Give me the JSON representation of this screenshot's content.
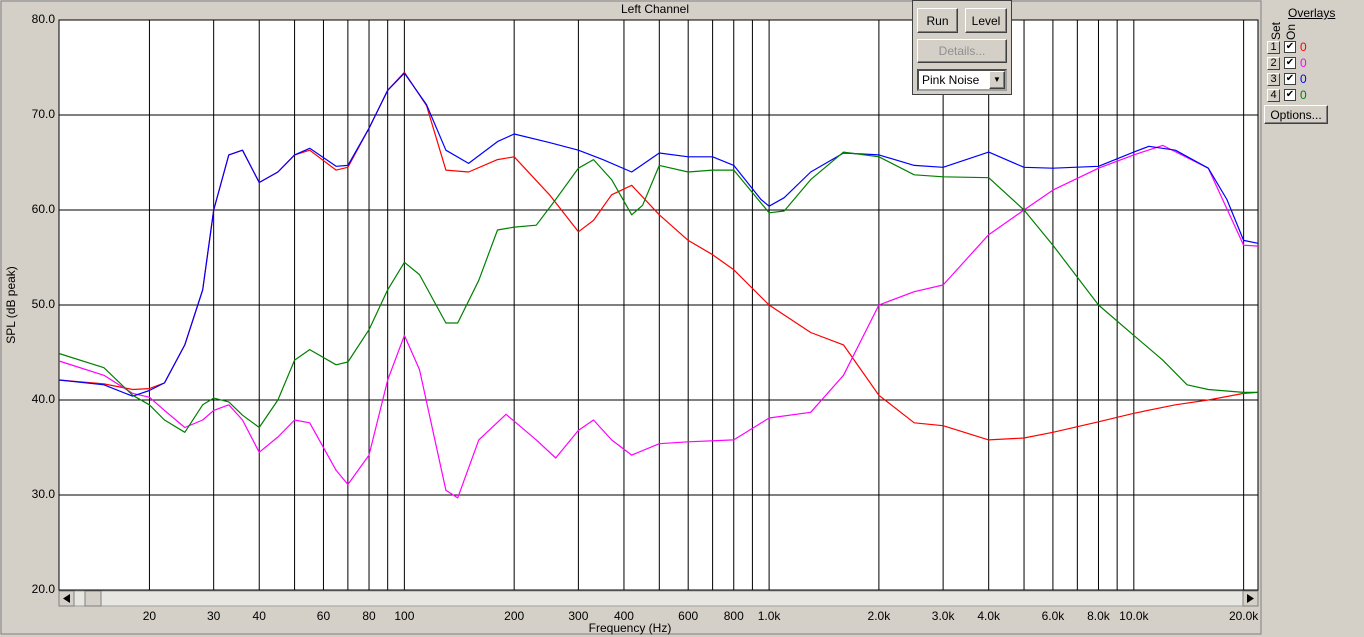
{
  "chart_data": {
    "type": "line",
    "title": "Left Channel",
    "x_label": "Frequency (Hz)",
    "y_label": "SPL (dB peak)",
    "x_scale": "log",
    "grid": true,
    "xlim": [
      11.3,
      21900
    ],
    "ylim": [
      20,
      80
    ],
    "xticks": [
      20,
      30,
      40,
      60,
      80,
      100,
      200,
      300,
      400,
      600,
      800,
      {
        "value": 1000,
        "label": "1.0k"
      },
      {
        "value": 2000,
        "label": "2.0k"
      },
      {
        "value": 3000,
        "label": "3.0k"
      },
      {
        "value": 4000,
        "label": "4.0k"
      },
      {
        "value": 6000,
        "label": "6.0k"
      },
      {
        "value": 8000,
        "label": "8.0k"
      },
      {
        "value": 10000,
        "label": "10.0k"
      },
      {
        "value": 20000,
        "label": "20.0k"
      }
    ],
    "xgrid": [
      50,
      70,
      90,
      500,
      700,
      900,
      5000,
      7000,
      9000
    ],
    "yticks": [
      {
        "value": 20,
        "label": "20.0"
      },
      {
        "value": 30,
        "label": "30.0"
      },
      {
        "value": 40,
        "label": "40.0"
      },
      {
        "value": 50,
        "label": "50.0"
      },
      {
        "value": 60,
        "label": "60.0"
      },
      {
        "value": 70,
        "label": "70.0"
      },
      {
        "value": 80,
        "label": "80.0"
      }
    ],
    "series": [
      {
        "color": "#ff0000",
        "x": [
          11.3,
          15,
          18,
          20,
          22,
          25,
          28,
          30,
          33,
          36,
          40,
          45,
          50,
          55,
          65,
          70,
          80,
          90,
          100,
          115,
          130,
          150,
          180,
          200,
          250,
          300,
          330,
          370,
          420,
          500,
          600,
          700,
          800,
          1000,
          1300,
          1600,
          2000,
          2500,
          3000,
          4000,
          5000,
          6000,
          8000,
          10000,
          13000,
          16000,
          20000,
          21900
        ],
        "values": [
          42.1,
          41.7,
          41.1,
          41.2,
          41.8,
          45.8,
          51.6,
          60.0,
          65.8,
          66.3,
          62.9,
          64.0,
          65.8,
          66.3,
          64.2,
          64.5,
          68.6,
          72.6,
          74.5,
          71.0,
          64.2,
          64.0,
          65.3,
          65.6,
          61.6,
          57.7,
          58.9,
          61.6,
          62.6,
          59.5,
          56.8,
          55.3,
          53.7,
          50.0,
          47.1,
          45.8,
          40.5,
          37.6,
          37.3,
          35.8,
          36.0,
          36.6,
          37.7,
          38.6,
          39.5,
          40.0,
          40.7,
          40.8
        ]
      },
      {
        "color": "#ff00ff",
        "x": [
          11.3,
          15,
          18,
          20,
          22,
          25,
          28,
          30,
          33,
          36,
          40,
          45,
          50,
          55,
          65,
          70,
          80,
          90,
          100,
          110,
          130,
          140,
          160,
          190,
          230,
          260,
          300,
          330,
          370,
          420,
          500,
          600,
          800,
          1000,
          1300,
          1600,
          2000,
          2500,
          3000,
          4000,
          5000,
          6000,
          8000,
          10000,
          12000,
          16000,
          20000,
          21900
        ],
        "values": [
          44.1,
          42.6,
          40.7,
          40.3,
          38.9,
          37.1,
          37.9,
          38.9,
          39.5,
          37.9,
          34.5,
          36.1,
          37.9,
          37.6,
          32.6,
          31.1,
          34.2,
          42.1,
          46.8,
          43.2,
          30.5,
          29.7,
          35.8,
          38.5,
          35.8,
          33.9,
          36.8,
          37.9,
          35.8,
          34.2,
          35.4,
          35.6,
          35.8,
          38.1,
          38.7,
          42.6,
          50.0,
          51.4,
          52.1,
          57.4,
          60.0,
          62.1,
          64.4,
          65.8,
          66.8,
          64.4,
          56.3,
          56.2
        ]
      },
      {
        "color": "#0000ff",
        "x": [
          11.3,
          15,
          18,
          20,
          22,
          25,
          28,
          30,
          33,
          36,
          40,
          45,
          50,
          55,
          65,
          70,
          80,
          90,
          100,
          115,
          130,
          150,
          180,
          200,
          250,
          300,
          350,
          420,
          500,
          600,
          700,
          800,
          950,
          1000,
          1100,
          1300,
          1600,
          2000,
          2500,
          3000,
          4000,
          5000,
          6000,
          8000,
          10000,
          11000,
          13000,
          16000,
          18000,
          20000,
          21900
        ],
        "values": [
          42.1,
          41.6,
          40.4,
          41.0,
          41.8,
          45.8,
          51.6,
          60.0,
          65.8,
          66.3,
          62.9,
          64.0,
          65.8,
          66.5,
          64.6,
          64.7,
          68.6,
          72.6,
          74.4,
          71.1,
          66.3,
          64.9,
          67.2,
          68.0,
          67.1,
          66.3,
          65.3,
          64.0,
          66.0,
          65.6,
          65.6,
          64.7,
          61.1,
          60.4,
          61.3,
          64.0,
          66.0,
          65.8,
          64.7,
          64.5,
          66.1,
          64.5,
          64.4,
          64.6,
          66.1,
          66.7,
          66.3,
          64.4,
          61.1,
          56.8,
          56.5
        ]
      },
      {
        "color": "#008000",
        "x": [
          11.3,
          15,
          18,
          20,
          22,
          25,
          28,
          30,
          33,
          36,
          40,
          45,
          50,
          55,
          65,
          70,
          80,
          90,
          100,
          110,
          130,
          140,
          160,
          180,
          200,
          230,
          260,
          300,
          330,
          370,
          420,
          450,
          500,
          600,
          700,
          800,
          1000,
          1100,
          1300,
          1600,
          2000,
          2500,
          3000,
          4000,
          5000,
          6000,
          8000,
          10000,
          12000,
          14000,
          16000,
          20000,
          21900
        ],
        "values": [
          44.9,
          43.4,
          40.5,
          39.5,
          37.9,
          36.6,
          39.5,
          40.2,
          39.8,
          38.4,
          37.1,
          40.0,
          44.2,
          45.3,
          43.7,
          44.0,
          47.4,
          51.6,
          54.5,
          53.2,
          48.1,
          48.1,
          52.6,
          57.9,
          58.2,
          58.4,
          61.1,
          64.4,
          65.3,
          63.2,
          59.5,
          60.5,
          64.7,
          64.0,
          64.2,
          64.2,
          59.7,
          59.9,
          63.2,
          66.1,
          65.6,
          63.7,
          63.5,
          63.4,
          60.0,
          56.3,
          50.0,
          46.8,
          44.2,
          41.6,
          41.1,
          40.8,
          40.8
        ]
      }
    ]
  },
  "controls": {
    "run": "Run",
    "level": "Level",
    "details": "Details...",
    "signal": "Pink Noise"
  },
  "overlays": {
    "title": "Overlays",
    "set": "Set",
    "on": "On",
    "options": "Options...",
    "rows": [
      {
        "set": "1",
        "value": "0",
        "color": "#ff0000"
      },
      {
        "set": "2",
        "value": "0",
        "color": "#ff00ff"
      },
      {
        "set": "3",
        "value": "0",
        "color": "#0000ff"
      },
      {
        "set": "4",
        "value": "0",
        "color": "#008000"
      }
    ]
  }
}
